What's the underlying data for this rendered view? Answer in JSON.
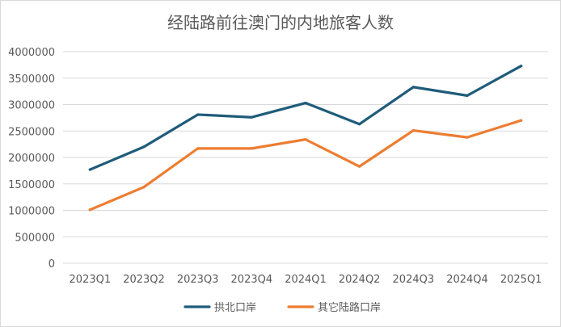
{
  "chart_data": {
    "type": "line",
    "title": "经陆路前往澳门的内地旅客人数",
    "xlabel": "",
    "ylabel": "",
    "ylim": [
      0,
      4000000
    ],
    "ytick_step": 500000,
    "grid": true,
    "legend_position": "bottom",
    "categories": [
      "2023Q1",
      "2023Q2",
      "2023Q3",
      "2023Q4",
      "2024Q1",
      "2024Q2",
      "2024Q3",
      "2024Q4",
      "2025Q1"
    ],
    "series": [
      {
        "name": "拱北口岸",
        "color": "#1f5c7a",
        "values": [
          1770000,
          2200000,
          2810000,
          2760000,
          3030000,
          2630000,
          3330000,
          3170000,
          3730000
        ]
      },
      {
        "name": "其它陆路口岸",
        "color": "#ed7d31",
        "values": [
          1010000,
          1440000,
          2170000,
          2170000,
          2340000,
          1830000,
          2510000,
          2380000,
          2700000
        ]
      }
    ]
  }
}
